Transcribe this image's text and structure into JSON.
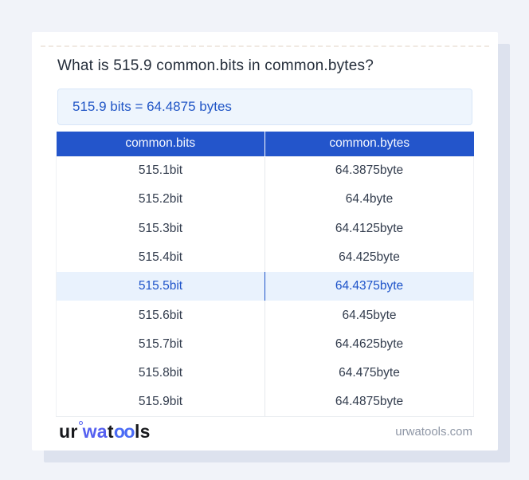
{
  "page": {
    "title": "What is 515.9 common.bits in common.bytes?",
    "answer": "515.9 bits = 64.4875 bytes"
  },
  "table": {
    "headers": [
      "common.bits",
      "common.bytes"
    ],
    "rows": [
      {
        "bits": "515.1bit",
        "bytes": "64.3875byte",
        "highlighted": false
      },
      {
        "bits": "515.2bit",
        "bytes": "64.4byte",
        "highlighted": false
      },
      {
        "bits": "515.3bit",
        "bytes": "64.4125byte",
        "highlighted": false
      },
      {
        "bits": "515.4bit",
        "bytes": "64.425byte",
        "highlighted": false
      },
      {
        "bits": "515.5bit",
        "bytes": "64.4375byte",
        "highlighted": true
      },
      {
        "bits": "515.6bit",
        "bytes": "64.45byte",
        "highlighted": false
      },
      {
        "bits": "515.7bit",
        "bytes": "64.4625byte",
        "highlighted": false
      },
      {
        "bits": "515.8bit",
        "bytes": "64.475byte",
        "highlighted": false
      },
      {
        "bits": "515.9bit",
        "bytes": "64.4875byte",
        "highlighted": false
      }
    ]
  },
  "footer": {
    "logo": {
      "part1": "ur",
      "part2": "wa",
      "part3": "t",
      "part4": "oo",
      "part5": "ls"
    },
    "domain": "urwatools.com"
  },
  "colors": {
    "header_blue": "#2355cb",
    "accent_text_blue": "#2156c6",
    "highlight_row_bg": "#e9f2fd",
    "answer_box_bg": "#eef5fd",
    "logo_indigo": "#5560f0",
    "page_bg": "#f1f3f9",
    "card_shadow": "#dde2ee"
  }
}
